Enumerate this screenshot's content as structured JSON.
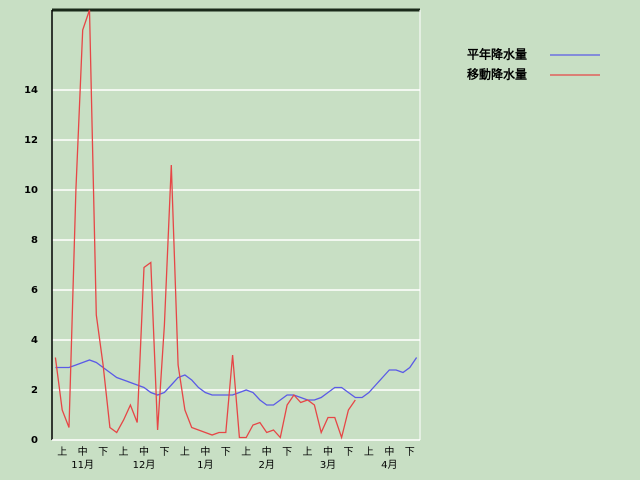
{
  "chart_data": {
    "type": "line",
    "categories": [
      null,
      "上",
      null,
      null,
      "中",
      null,
      null,
      "下",
      null,
      null,
      "上",
      null,
      null,
      "中",
      null,
      null,
      "下",
      null,
      null,
      "上",
      null,
      null,
      "中",
      null,
      null,
      "下",
      null,
      null,
      "上",
      null,
      null,
      "中",
      null,
      null,
      "下",
      null,
      null,
      "上",
      null,
      null,
      "中",
      null,
      null,
      "下",
      null,
      null,
      "上",
      null,
      null,
      "中",
      null,
      null,
      "下",
      null
    ],
    "groups": [
      {
        "label": "11月",
        "span": 9
      },
      {
        "label": "12月",
        "span": 9
      },
      {
        "label": "1月",
        "span": 9
      },
      {
        "label": "2月",
        "span": 9
      },
      {
        "label": "3月",
        "span": 9
      },
      {
        "label": "4月",
        "span": 9
      }
    ],
    "series": [
      {
        "name": "平年降水量",
        "color": "#5a5ae6",
        "values": [
          2.9,
          2.9,
          2.9,
          3.0,
          3.1,
          3.2,
          3.1,
          2.9,
          2.7,
          2.5,
          2.4,
          2.3,
          2.2,
          2.1,
          1.9,
          1.8,
          1.9,
          2.2,
          2.5,
          2.6,
          2.4,
          2.1,
          1.9,
          1.8,
          1.8,
          1.8,
          1.8,
          1.9,
          2.0,
          1.9,
          1.6,
          1.4,
          1.4,
          1.6,
          1.8,
          1.8,
          1.7,
          1.6,
          1.6,
          1.7,
          1.9,
          2.1,
          2.1,
          1.9,
          1.7,
          1.7,
          1.9,
          2.2,
          2.5,
          2.8,
          2.8,
          2.7,
          2.9,
          3.3
        ]
      },
      {
        "name": "移動降水量",
        "color": "#e64646",
        "values": [
          3.3,
          1.2,
          0.5,
          10.0,
          16.4,
          17.2,
          5.0,
          3.0,
          0.5,
          0.3,
          0.8,
          1.4,
          0.7,
          6.9,
          7.1,
          0.4,
          4.6,
          11.0,
          3.0,
          1.2,
          0.5,
          0.4,
          0.3,
          0.2,
          0.3,
          0.3,
          3.4,
          0.1,
          0.1,
          0.6,
          0.7,
          0.3,
          0.4,
          0.1,
          1.4,
          1.8,
          1.5,
          1.6,
          1.4,
          0.3,
          0.9,
          0.9,
          0.1,
          1.2,
          1.6,
          null,
          null,
          null,
          null,
          null,
          null,
          null,
          null,
          null
        ]
      }
    ],
    "ylim": [
      0,
      17.2
    ],
    "yticks": [
      0,
      2,
      4,
      6,
      8,
      10,
      12,
      14
    ],
    "grid": true,
    "legend": "top-right"
  }
}
